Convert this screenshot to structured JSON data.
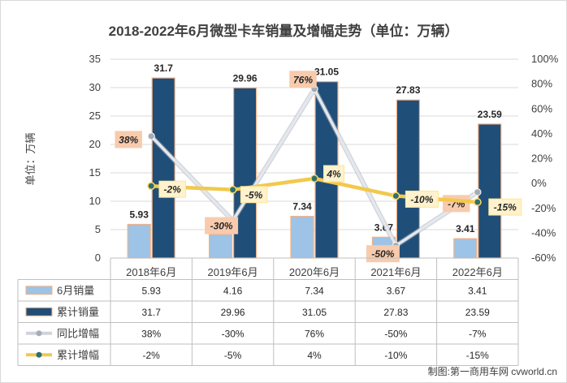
{
  "chart_data": {
    "type": "bar",
    "title": "2018-2022年6月微型卡车销量及增幅走势（单位：万辆）",
    "ylabel": "单位：万辆",
    "ylim": [
      0,
      35
    ],
    "y_ticks": [
      0,
      5,
      10,
      15,
      20,
      25,
      30,
      35
    ],
    "y2lim": [
      -0.6,
      1.0
    ],
    "y2_ticks": [
      "-60%",
      "-40%",
      "-20%",
      "0%",
      "20%",
      "40%",
      "60%",
      "80%",
      "100%"
    ],
    "grid": true,
    "legend_placement": "data-table-left",
    "categories": [
      "2018年6月",
      "2019年6月",
      "2020年6月",
      "2021年6月",
      "2022年6月"
    ],
    "series": [
      {
        "name": "6月销量",
        "kind": "bar",
        "axis": "left",
        "color": "#9dc3e6",
        "values": [
          5.93,
          4.16,
          7.34,
          3.67,
          3.41
        ],
        "labels": [
          "5.93",
          "4.16",
          "7.34",
          "3.67",
          "3.41"
        ]
      },
      {
        "name": "累计销量",
        "kind": "bar",
        "axis": "left",
        "color": "#1f4e79",
        "values": [
          31.7,
          29.96,
          31.05,
          27.83,
          23.59
        ],
        "labels": [
          "31.7",
          "29.96",
          "31.05",
          "27.83",
          "23.59"
        ]
      },
      {
        "name": "同比增幅",
        "kind": "line",
        "axis": "right",
        "color": "#d9dde3",
        "values": [
          0.38,
          -0.3,
          0.76,
          -0.5,
          -0.07
        ],
        "labels": [
          "38%",
          "-30%",
          "76%",
          "-50%",
          "-7%"
        ]
      },
      {
        "name": "累计增幅",
        "kind": "line",
        "axis": "right",
        "color": "#ffd966",
        "values": [
          -0.02,
          -0.05,
          0.04,
          -0.1,
          -0.15
        ],
        "labels": [
          "-2%",
          "-5%",
          "4%",
          "-10%",
          "-15%"
        ]
      }
    ]
  },
  "credit": "制图:第一商用车网 cvworld.cn"
}
